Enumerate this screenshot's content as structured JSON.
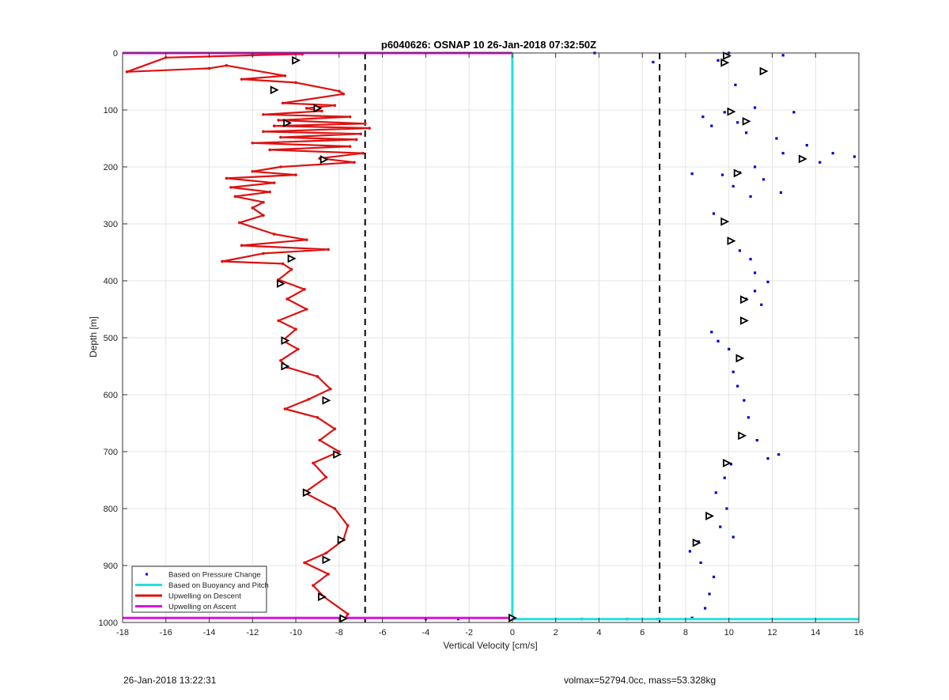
{
  "chart_data": {
    "type": "scatter",
    "title": "p6040626: OSNAP 10 26-Jan-2018 07:32:50Z",
    "xlabel": "Vertical Velocity [cm/s]",
    "ylabel": "Depth [m]",
    "xlim": [
      -18,
      16
    ],
    "ylim": [
      0,
      1000
    ],
    "y_reversed": true,
    "grid": true,
    "x_ticks": [
      -18,
      -16,
      -14,
      -12,
      -10,
      -8,
      -6,
      -4,
      -2,
      0,
      2,
      4,
      6,
      8,
      10,
      12,
      14,
      16
    ],
    "y_ticks": [
      0,
      100,
      200,
      300,
      400,
      500,
      600,
      700,
      800,
      900,
      1000
    ],
    "legend_position": "bottom-left",
    "legend": [
      {
        "label": "Based on Pressure Change",
        "color": "#0000cc",
        "style": "dot"
      },
      {
        "label": "Based on Buoyancy and Pitch",
        "color": "#22e0e0",
        "style": "line"
      },
      {
        "label": "Upwelling on Descent",
        "color": "#dd1111",
        "style": "line"
      },
      {
        "label": "Upwelling on Ascent",
        "color": "#dd11dd",
        "style": "line"
      }
    ],
    "reference_lines_x": [
      -6.8,
      6.8
    ],
    "upwelling_descent": [
      [
        -9.7,
        2
      ],
      [
        -12,
        4
      ],
      [
        -16,
        8
      ],
      [
        -17.8,
        33
      ],
      [
        -14,
        27
      ],
      [
        -13.2,
        22
      ],
      [
        -10.5,
        40
      ],
      [
        -12.5,
        46
      ],
      [
        -10,
        52
      ],
      [
        -8,
        67
      ],
      [
        -7.8,
        72
      ],
      [
        -10.6,
        88
      ],
      [
        -8.2,
        92
      ],
      [
        -9.5,
        97
      ],
      [
        -8.8,
        102
      ],
      [
        -11.5,
        108
      ],
      [
        -7.5,
        112
      ],
      [
        -10.8,
        118
      ],
      [
        -6.8,
        124
      ],
      [
        -11,
        128
      ],
      [
        -6.6,
        132
      ],
      [
        -11.5,
        138
      ],
      [
        -7,
        142
      ],
      [
        -10.7,
        148
      ],
      [
        -7.2,
        152
      ],
      [
        -12,
        158
      ],
      [
        -7.5,
        164
      ],
      [
        -11.2,
        170
      ],
      [
        -6.9,
        176
      ],
      [
        -8.9,
        185
      ],
      [
        -7.3,
        192
      ],
      [
        -10.7,
        200
      ],
      [
        -12,
        208
      ],
      [
        -10,
        214
      ],
      [
        -13.2,
        220
      ],
      [
        -11,
        228
      ],
      [
        -13,
        236
      ],
      [
        -11.2,
        244
      ],
      [
        -12.8,
        252
      ],
      [
        -11.5,
        262
      ],
      [
        -12,
        272
      ],
      [
        -11.5,
        285
      ],
      [
        -12.6,
        298
      ],
      [
        -11,
        318
      ],
      [
        -9.5,
        328
      ],
      [
        -12.5,
        338
      ],
      [
        -8.5,
        345
      ],
      [
        -11.5,
        352
      ],
      [
        -13.4,
        366
      ],
      [
        -10.6,
        370
      ],
      [
        -10.2,
        380
      ],
      [
        -10.8,
        398
      ],
      [
        -9.6,
        415
      ],
      [
        -10.4,
        432
      ],
      [
        -9.5,
        450
      ],
      [
        -10.8,
        470
      ],
      [
        -10,
        485
      ],
      [
        -10.6,
        505
      ],
      [
        -9.9,
        520
      ],
      [
        -10.7,
        540
      ],
      [
        -10.4,
        552
      ],
      [
        -9,
        568
      ],
      [
        -8.4,
        590
      ],
      [
        -9.4,
        608
      ],
      [
        -10.5,
        625
      ],
      [
        -9,
        640
      ],
      [
        -8.2,
        660
      ],
      [
        -8.9,
        680
      ],
      [
        -8,
        700
      ],
      [
        -9.2,
        720
      ],
      [
        -8.6,
        745
      ],
      [
        -9.6,
        772
      ],
      [
        -8.2,
        800
      ],
      [
        -7.6,
        830
      ],
      [
        -7.8,
        855
      ],
      [
        -8.6,
        878
      ],
      [
        -9.6,
        895
      ],
      [
        -8.5,
        915
      ],
      [
        -9.2,
        935
      ],
      [
        -8.7,
        955
      ],
      [
        -7.6,
        985
      ],
      [
        -7.7,
        992
      ]
    ],
    "buoyancy_pitch": [
      [
        0,
        0
      ],
      [
        0,
        994
      ],
      [
        16,
        994
      ]
    ],
    "descent_top": [
      [
        -18,
        0
      ],
      [
        0,
        0
      ]
    ],
    "ascent_bottom": [
      [
        -18,
        992
      ],
      [
        0,
        992
      ]
    ],
    "pressure_change_points": [
      [
        10.0,
        0
      ],
      [
        12.5,
        4
      ],
      [
        9.5,
        13
      ],
      [
        11.5,
        33
      ],
      [
        9.7,
        20
      ],
      [
        10.3,
        56
      ],
      [
        6.5,
        16
      ],
      [
        3.8,
        0
      ],
      [
        9.8,
        104
      ],
      [
        10.4,
        122
      ],
      [
        10.1,
        104
      ],
      [
        8.8,
        112
      ],
      [
        11.2,
        96
      ],
      [
        13.0,
        104
      ],
      [
        9.2,
        128
      ],
      [
        10.8,
        140
      ],
      [
        12.2,
        150
      ],
      [
        13.6,
        162
      ],
      [
        14.8,
        176
      ],
      [
        15.8,
        182
      ],
      [
        13.4,
        186
      ],
      [
        12.5,
        176
      ],
      [
        14.2,
        192
      ],
      [
        11.2,
        200
      ],
      [
        10.5,
        210
      ],
      [
        9.7,
        214
      ],
      [
        8.3,
        212
      ],
      [
        11.6,
        222
      ],
      [
        10.2,
        234
      ],
      [
        12.4,
        245
      ],
      [
        11.0,
        252
      ],
      [
        9.3,
        282
      ],
      [
        9.7,
        298
      ],
      [
        10.0,
        330
      ],
      [
        10.5,
        347
      ],
      [
        11.0,
        362
      ],
      [
        11.2,
        386
      ],
      [
        11.8,
        402
      ],
      [
        11.2,
        418
      ],
      [
        10.8,
        432
      ],
      [
        11.5,
        442
      ],
      [
        10.6,
        470
      ],
      [
        9.2,
        490
      ],
      [
        9.5,
        506
      ],
      [
        10.0,
        520
      ],
      [
        10.5,
        536
      ],
      [
        10.2,
        560
      ],
      [
        10.4,
        585
      ],
      [
        10.7,
        610
      ],
      [
        10.9,
        640
      ],
      [
        10.6,
        672
      ],
      [
        11.3,
        680
      ],
      [
        12.3,
        705
      ],
      [
        11.8,
        712
      ],
      [
        10.1,
        722
      ],
      [
        9.8,
        746
      ],
      [
        9.4,
        772
      ],
      [
        9.9,
        800
      ],
      [
        9.0,
        812
      ],
      [
        9.6,
        832
      ],
      [
        10.2,
        850
      ],
      [
        8.6,
        858
      ],
      [
        8.2,
        875
      ],
      [
        8.7,
        895
      ],
      [
        9.3,
        920
      ],
      [
        9.1,
        950
      ],
      [
        8.9,
        975
      ],
      [
        8.3,
        992
      ],
      [
        6.7,
        994
      ],
      [
        5.3,
        994
      ],
      [
        3.2,
        994
      ],
      [
        -4,
        994
      ],
      [
        -2.5,
        994
      ]
    ],
    "triangle_markers": [
      [
        -10,
        13
      ],
      [
        -11,
        65
      ],
      [
        -9,
        97
      ],
      [
        -10.4,
        123
      ],
      [
        -8.7,
        187
      ],
      [
        -10.2,
        361
      ],
      [
        -10.7,
        405
      ],
      [
        -10.5,
        505
      ],
      [
        -10.5,
        550
      ],
      [
        -8.6,
        610
      ],
      [
        -8.1,
        705
      ],
      [
        -9.5,
        772
      ],
      [
        -7.9,
        855
      ],
      [
        -8.6,
        890
      ],
      [
        -8.8,
        955
      ],
      [
        -7.8,
        993
      ],
      [
        9.9,
        5
      ],
      [
        9.8,
        17
      ],
      [
        11.6,
        32
      ],
      [
        10.1,
        103
      ],
      [
        10.8,
        120
      ],
      [
        13.4,
        186
      ],
      [
        10.4,
        211
      ],
      [
        9.8,
        296
      ],
      [
        10.1,
        330
      ],
      [
        10.7,
        433
      ],
      [
        10.7,
        470
      ],
      [
        10.5,
        536
      ],
      [
        10.6,
        672
      ],
      [
        9.9,
        720
      ],
      [
        9.1,
        813
      ],
      [
        8.5,
        860
      ],
      [
        0,
        992
      ]
    ]
  },
  "footer": {
    "timestamp": "26-Jan-2018 13:22:31",
    "info": "volmax=52794.0cc, mass=53.328kg"
  }
}
